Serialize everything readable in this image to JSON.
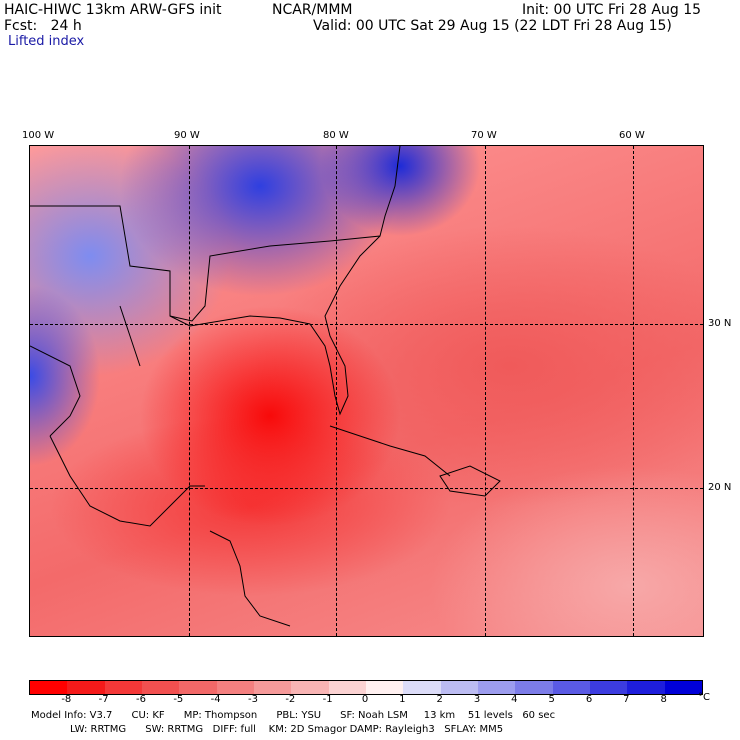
{
  "header": {
    "model": "HAIC-HIWC 13km ARW-GFS init",
    "org": "NCAR/MMM",
    "init": "Init: 00 UTC Fri 28 Aug 15",
    "fcst": "Fcst:   24 h",
    "valid": "Valid: 00 UTC Sat 29 Aug 15 (22 LDT Fri 28 Aug 15)",
    "field": "Lifted index"
  },
  "map": {
    "lon_labels": [
      "100 W",
      "90 W",
      "80 W",
      "70 W",
      "60 W"
    ],
    "lat_labels": [
      "30 N",
      "20 N"
    ]
  },
  "colorbar": {
    "ticks": [
      "-8",
      "-7",
      "-6",
      "-5",
      "-4",
      "-3",
      "-2",
      "-1",
      "0",
      "1",
      "2",
      "3",
      "4",
      "5",
      "6",
      "7",
      "8"
    ],
    "unit": "°C",
    "colors": [
      "#ff0000",
      "#f51a1a",
      "#f43838",
      "#f25050",
      "#f26868",
      "#f48080",
      "#f69a9a",
      "#f8b4b4",
      "#fbd2d2",
      "#fff0f0",
      "#dcdcf8",
      "#bcbcf2",
      "#9c9cee",
      "#7c7ce8",
      "#5a5ae4",
      "#3c3ce0",
      "#1e1edc",
      "#0000d8"
    ]
  },
  "footer": {
    "line1": "Model Info: V3.7      CU: KF      MP: Thompson      PBL: YSU      SF: Noah LSM     13 km    51 levels   60 sec",
    "line2": "LW: RRTMG      SW: RRTMG   DIFF: full    KM: 2D Smagor DAMP: Rayleigh3   SFLAY: MM5"
  }
}
